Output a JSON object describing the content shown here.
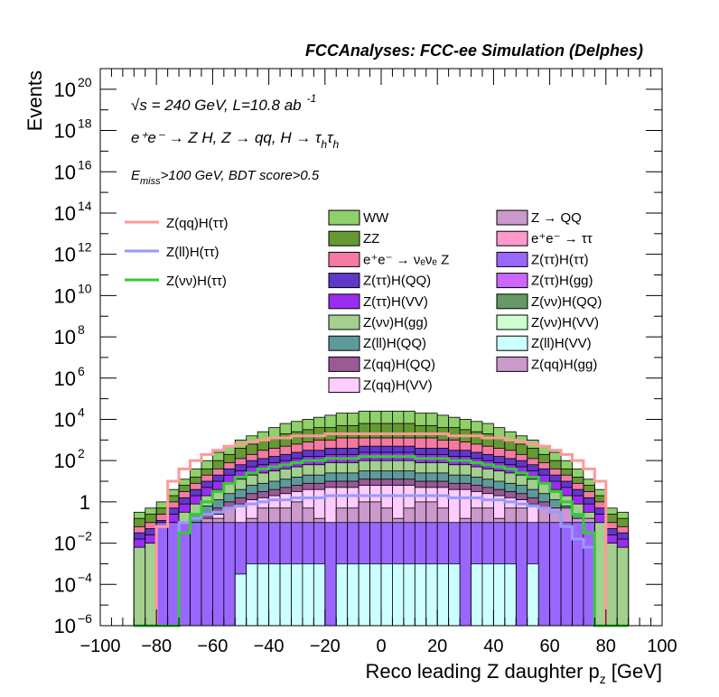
{
  "chart_data": {
    "type": "stacked-histogram",
    "title": "FCCAnalyses: FCC-ee Simulation (Delphes)",
    "xlabel": "Reco leading Z daughter p",
    "xlabel_sub": "z",
    "xlabel_unit": "[GeV]",
    "ylabel": "Events",
    "xlim": [
      -100,
      100
    ],
    "ylim_log10": [
      -6,
      21
    ],
    "y_scale": "log",
    "x_ticks": [
      "−100",
      "−80",
      "−60",
      "−40",
      "−20",
      "0",
      "20",
      "40",
      "60",
      "80",
      "100"
    ],
    "y_ticks": [
      {
        "exp": -6,
        "base": "10",
        "sup": "−6"
      },
      {
        "exp": -4,
        "base": "10",
        "sup": "−4"
      },
      {
        "exp": -2,
        "base": "10",
        "sup": "−2"
      },
      {
        "exp": 0,
        "base": "1",
        "sup": ""
      },
      {
        "exp": 2,
        "base": "10",
        "sup": "2"
      },
      {
        "exp": 4,
        "base": "10",
        "sup": "4"
      },
      {
        "exp": 6,
        "base": "10",
        "sup": "6"
      },
      {
        "exp": 8,
        "base": "10",
        "sup": "8"
      },
      {
        "exp": 10,
        "base": "10",
        "sup": "10"
      },
      {
        "exp": 12,
        "base": "10",
        "sup": "12"
      },
      {
        "exp": 14,
        "base": "10",
        "sup": "14"
      },
      {
        "exp": 16,
        "base": "10",
        "sup": "16"
      },
      {
        "exp": 18,
        "base": "10",
        "sup": "18"
      },
      {
        "exp": 20,
        "base": "10",
        "sup": "20"
      }
    ],
    "annotations": {
      "sqrt": "√s",
      "energy": " = 240 GeV, L=10.8 ab",
      "lumi_sup": "-1",
      "process": "e⁺e⁻ → Z H, Z → qq, H → τ",
      "process_sub_h1": "h",
      "process_tau2": "τ",
      "process_sub_h2": "h",
      "emiss": "E",
      "emiss_sub": "miss",
      "cuts": ">100 GeV, BDT score>0.5"
    },
    "bin_edges": [
      -88,
      -84,
      -80,
      -76,
      -72,
      -68,
      -64,
      -60,
      -56,
      -52,
      -48,
      -44,
      -40,
      -36,
      -32,
      -28,
      -24,
      -20,
      -16,
      -12,
      -8,
      -4,
      0,
      4,
      8,
      12,
      16,
      20,
      24,
      28,
      32,
      36,
      40,
      44,
      48,
      52,
      56,
      60,
      64,
      68,
      72,
      76,
      80,
      84,
      88
    ],
    "stack_log10": [
      {
        "name": "WW",
        "color": "#8fd06a",
        "values": [
          -0.5,
          -0.3,
          0.0,
          0.6,
          1.1,
          1.6,
          2.0,
          2.4,
          2.7,
          3.0,
          3.2,
          3.4,
          3.6,
          3.8,
          3.9,
          4.0,
          4.1,
          4.2,
          4.3,
          4.3,
          4.4,
          4.4,
          4.4,
          4.4,
          4.4,
          4.3,
          4.3,
          4.2,
          4.1,
          4.0,
          3.9,
          3.8,
          3.6,
          3.4,
          3.2,
          3.0,
          2.7,
          2.4,
          2.0,
          1.6,
          1.1,
          0.6,
          -0.3,
          -0.5
        ]
      },
      {
        "name": "ZZ",
        "color": "#669933",
        "values": [
          -0.8,
          -0.6,
          -0.3,
          0.3,
          0.8,
          1.2,
          1.6,
          2.0,
          2.3,
          2.6,
          2.8,
          3.0,
          3.1,
          3.3,
          3.4,
          3.5,
          3.6,
          3.6,
          3.7,
          3.7,
          3.8,
          3.8,
          3.8,
          3.8,
          3.8,
          3.7,
          3.7,
          3.6,
          3.6,
          3.5,
          3.4,
          3.3,
          3.1,
          3.0,
          2.8,
          2.6,
          2.3,
          2.0,
          1.6,
          1.2,
          0.8,
          0.3,
          -0.6,
          -0.8
        ]
      },
      {
        "name": "e⁺e⁻ → νₑνₑ Z",
        "color": "#f57aa2",
        "values": [
          -1.2,
          -1.0,
          -0.6,
          0.0,
          0.5,
          0.9,
          1.3,
          1.6,
          1.9,
          2.1,
          2.3,
          2.5,
          2.6,
          2.7,
          2.8,
          2.9,
          3.0,
          3.0,
          3.1,
          3.1,
          3.1,
          3.1,
          3.1,
          3.1,
          3.1,
          3.1,
          3.1,
          3.0,
          3.0,
          2.9,
          2.8,
          2.7,
          2.6,
          2.5,
          2.3,
          2.1,
          1.9,
          1.6,
          1.3,
          0.9,
          0.5,
          0.0,
          -1.0,
          -1.2
        ]
      },
      {
        "name": "Z(ττ)H(QQ)",
        "color": "#6038c8",
        "values": [
          -1.5,
          -1.3,
          -0.9,
          -0.3,
          0.2,
          0.6,
          1.0,
          1.3,
          1.6,
          1.8,
          2.0,
          2.1,
          2.2,
          2.3,
          2.4,
          2.5,
          2.5,
          2.6,
          2.6,
          2.6,
          2.7,
          2.7,
          2.7,
          2.7,
          2.7,
          2.6,
          2.6,
          2.6,
          2.5,
          2.5,
          2.4,
          2.3,
          2.2,
          2.1,
          2.0,
          1.8,
          1.6,
          1.3,
          1.0,
          0.6,
          0.2,
          -0.3,
          -1.3,
          -1.5
        ]
      },
      {
        "name": "Z(ττ)H(VV)",
        "color": "#9a2ef0",
        "values": [
          -1.8,
          -1.6,
          -1.2,
          -0.6,
          -0.1,
          0.3,
          0.7,
          1.0,
          1.3,
          1.5,
          1.7,
          1.8,
          1.9,
          2.0,
          2.1,
          2.2,
          2.2,
          2.3,
          2.3,
          2.3,
          2.4,
          2.4,
          2.4,
          2.4,
          2.4,
          2.3,
          2.3,
          2.3,
          2.2,
          2.2,
          2.1,
          2.0,
          1.9,
          1.8,
          1.7,
          1.5,
          1.3,
          1.0,
          0.7,
          0.3,
          -0.1,
          -0.6,
          -1.6,
          -1.8
        ]
      },
      {
        "name": "Z(νν)H(gg)",
        "color": "#a3cf8f",
        "values": [
          -2.2,
          -2.0,
          -1.6,
          -1.0,
          -0.5,
          -0.1,
          0.3,
          0.6,
          0.9,
          1.1,
          1.3,
          1.4,
          1.5,
          1.6,
          1.7,
          1.8,
          1.8,
          1.9,
          1.9,
          1.9,
          2.0,
          2.0,
          2.0,
          2.0,
          2.0,
          1.9,
          1.9,
          1.9,
          1.8,
          1.8,
          1.7,
          1.6,
          1.5,
          1.4,
          1.3,
          1.1,
          0.9,
          0.6,
          0.3,
          -0.1,
          -0.5,
          -1.0,
          -2.0,
          -2.2
        ]
      },
      {
        "name": "Z(ll)H(QQ)",
        "color": "#5f9a9a",
        "values": [
          -6,
          -6,
          -6,
          -6,
          -1.0,
          -0.6,
          -0.2,
          0.1,
          0.4,
          0.6,
          0.8,
          0.9,
          1.0,
          1.1,
          1.2,
          1.3,
          1.3,
          1.4,
          1.4,
          1.4,
          1.5,
          1.5,
          1.5,
          1.5,
          1.5,
          1.4,
          1.4,
          1.4,
          1.3,
          1.3,
          1.2,
          1.1,
          1.0,
          0.9,
          0.8,
          0.6,
          0.4,
          0.1,
          -0.2,
          -0.6,
          -1.0,
          -6,
          -6,
          -6
        ]
      },
      {
        "name": "Z(qq)H(QQ)",
        "color": "#9a5a96",
        "values": [
          -6,
          -6,
          -6,
          -6,
          -1.4,
          -1.0,
          -0.6,
          -0.3,
          0.0,
          0.2,
          0.4,
          0.5,
          0.6,
          0.7,
          0.8,
          0.9,
          0.9,
          1.0,
          1.0,
          1.0,
          1.1,
          1.1,
          1.1,
          1.1,
          1.1,
          1.0,
          1.0,
          1.0,
          0.9,
          0.9,
          0.8,
          0.7,
          0.6,
          0.5,
          0.4,
          0.2,
          0.0,
          -0.3,
          -0.6,
          -1.0,
          -1.4,
          -6,
          -6,
          -6
        ]
      },
      {
        "name": "Z(qq)H(VV)",
        "color": "#ffccff",
        "values": [
          -6,
          -6,
          -6,
          -6,
          -1.7,
          -1.3,
          -0.9,
          -0.6,
          -0.3,
          -0.1,
          0.1,
          0.2,
          0.3,
          0.4,
          0.5,
          0.6,
          0.6,
          0.7,
          0.7,
          0.7,
          0.8,
          0.8,
          0.8,
          0.8,
          0.8,
          0.7,
          0.7,
          0.7,
          0.6,
          0.6,
          0.5,
          0.4,
          0.3,
          0.2,
          0.1,
          -0.1,
          -0.3,
          -0.6,
          -0.9,
          -1.3,
          -1.7,
          -6,
          -6,
          -6
        ]
      },
      {
        "name": "Z → QQ",
        "color": "#cc99cc",
        "values": [
          -6,
          -6,
          -1.5,
          -1.5,
          -1.0,
          -1.5,
          -0.8,
          -0.8,
          -0.3,
          -1.5,
          -0.8,
          -0.3,
          -0.3,
          -0.3,
          0.0,
          -0.3,
          -0.8,
          -1.5,
          -0.3,
          -0.3,
          0.0,
          0.0,
          -0.3,
          -0.8,
          -0.3,
          0.0,
          0.0,
          -0.3,
          -1.5,
          -0.8,
          -0.3,
          -0.3,
          -0.8,
          -0.3,
          -0.3,
          -1.5,
          -0.3,
          -0.3,
          -0.3,
          -0.8,
          -0.8,
          -6,
          -6,
          -6
        ]
      },
      {
        "name": "e⁺e⁻ → ττ",
        "color": "#ff99cc",
        "values": [
          -6,
          -6,
          -6,
          -6,
          -6,
          -6,
          -6,
          -6,
          -6,
          -6,
          -6,
          -6,
          -6,
          -6,
          -6,
          -6,
          -6,
          -6,
          -6,
          -6,
          -6,
          -6,
          -6,
          -6,
          -6,
          -6,
          -6,
          -6,
          -6,
          -6,
          -6,
          -6,
          -6,
          -6,
          -6,
          -6,
          -6,
          -6,
          -6,
          -6,
          -6,
          -6,
          -6,
          -6
        ]
      },
      {
        "name": "Z(ττ)H(ττ)",
        "color": "#9966ff",
        "values": [
          -6,
          -6,
          -1.0,
          -1.0,
          -1.0,
          -1.0,
          -1.0,
          -1.0,
          -1.0,
          -1.0,
          -1.0,
          -1.0,
          -1.0,
          -1.0,
          -1.0,
          -1.0,
          -1.0,
          -1.0,
          -1.0,
          -1.0,
          -1.0,
          -1.0,
          -1.0,
          -1.0,
          -1.0,
          -1.0,
          -1.0,
          -1.0,
          -1.0,
          -1.0,
          -1.0,
          -1.0,
          -1.0,
          -1.0,
          -1.0,
          -1.0,
          -1.0,
          -1.0,
          -1.0,
          -1.0,
          -1.0,
          -6,
          -6,
          -6
        ]
      },
      {
        "name": "Z(ττ)H(gg)",
        "color": "#cc66ff",
        "values": [
          -6,
          -6,
          -6,
          -6,
          -6,
          -6,
          -6,
          -6,
          -6,
          -6,
          -6,
          -6,
          -6,
          -6,
          -6,
          -6,
          -6,
          -6,
          -6,
          -6,
          -6,
          -6,
          -6,
          -6,
          -6,
          -6,
          -6,
          -6,
          -6,
          -6,
          -6,
          -6,
          -6,
          -6,
          -6,
          -6,
          -6,
          -6,
          -6,
          -6,
          -6,
          -6,
          -6,
          -6
        ]
      },
      {
        "name": "Z(νν)H(QQ)",
        "color": "#669966",
        "values": [
          -6,
          -6,
          -6,
          -6,
          -6,
          -6,
          -6,
          -6,
          -6,
          -6,
          -6,
          -6,
          -6,
          -6,
          -6,
          -6,
          -6,
          -6,
          -6,
          -6,
          -6,
          -6,
          -6,
          -6,
          -6,
          -6,
          -6,
          -6,
          -6,
          -6,
          -6,
          -6,
          -6,
          -6,
          -6,
          -6,
          -6,
          -6,
          -6,
          -6,
          -6,
          -6,
          -6,
          -6
        ]
      },
      {
        "name": "Z(νν)H(VV)",
        "color": "#ccffcc",
        "values": [
          -6,
          -6,
          -6,
          -6,
          -6,
          -6,
          -6,
          -6,
          -6,
          -6,
          -6,
          -6,
          -6,
          -6,
          -6,
          -6,
          -6,
          -6,
          -6,
          -6,
          -6,
          -6,
          -6,
          -6,
          -6,
          -6,
          -6,
          -6,
          -6,
          -6,
          -6,
          -6,
          -6,
          -6,
          -6,
          -6,
          -6,
          -6,
          -6,
          -6,
          -6,
          -6,
          -6,
          -6
        ]
      },
      {
        "name": "Z(ll)H(VV)",
        "color": "#ccffff",
        "values": [
          -6,
          -6,
          -6,
          -6,
          -6,
          -6,
          -6,
          -6,
          -6,
          -3.5,
          -3.0,
          -3.0,
          -3.0,
          -3.0,
          -3.0,
          -3.0,
          -3.0,
          -6,
          -3.0,
          -3.0,
          -3.0,
          -3.0,
          -3.0,
          -3.0,
          -3.0,
          -3.0,
          -3.0,
          -3.0,
          -3.0,
          -6,
          -3.0,
          -3.0,
          -3.0,
          -3.0,
          -6,
          -3.0,
          -6,
          -6,
          -6,
          -6,
          -6,
          -6,
          -6,
          -6
        ]
      },
      {
        "name": "Z(qq)H(gg)",
        "color": "#cc99cc",
        "values": [
          -6,
          -6,
          -6,
          -6,
          -6,
          -6,
          -6,
          -6,
          -6,
          -6,
          -6,
          -6,
          -6,
          -6,
          -6,
          -6,
          -6,
          -6,
          -6,
          -6,
          -6,
          -6,
          -6,
          -6,
          -6,
          -6,
          -6,
          -6,
          -6,
          -6,
          -6,
          -6,
          -6,
          -6,
          -6,
          -6,
          -6,
          -6,
          -6,
          -6,
          -6,
          -6,
          -6,
          -6
        ]
      }
    ],
    "signals": [
      {
        "name": "Z(qq)H(ττ)",
        "color": "#ff9999",
        "values": [
          -6,
          -6,
          -1.2,
          1.0,
          1.6,
          2.0,
          2.3,
          2.5,
          2.7,
          2.8,
          2.9,
          3.0,
          3.1,
          3.1,
          3.2,
          3.2,
          3.2,
          3.3,
          3.3,
          3.3,
          3.3,
          3.3,
          3.3,
          3.3,
          3.3,
          3.3,
          3.3,
          3.3,
          3.2,
          3.2,
          3.2,
          3.1,
          3.1,
          3.0,
          2.9,
          2.8,
          2.7,
          2.5,
          2.3,
          2.0,
          1.6,
          1.0,
          -6,
          -6
        ]
      },
      {
        "name": "Z(ll)H(ττ)",
        "color": "#9999ff",
        "values": [
          -6,
          -6,
          -6,
          -6,
          -1.0,
          -0.8,
          -0.6,
          -0.5,
          -0.3,
          -0.2,
          -0.1,
          0.0,
          0.1,
          0.1,
          0.2,
          0.2,
          0.2,
          0.3,
          0.3,
          0.3,
          0.3,
          0.3,
          0.3,
          0.3,
          0.3,
          0.3,
          0.3,
          0.3,
          0.2,
          0.2,
          0.2,
          0.1,
          0.1,
          0.0,
          -0.1,
          -0.2,
          -0.3,
          -0.5,
          -1.2,
          -1.8,
          -2.2,
          -6,
          -6,
          -6
        ]
      },
      {
        "name": "Z(νν)H(ττ)",
        "color": "#33cc33",
        "values": [
          -6,
          -6,
          -6,
          -6,
          -1.5,
          -0.6,
          0.0,
          0.5,
          0.9,
          1.2,
          1.4,
          1.6,
          1.7,
          1.8,
          1.9,
          2.0,
          2.0,
          2.1,
          2.1,
          2.1,
          2.2,
          2.2,
          2.2,
          2.2,
          2.2,
          2.1,
          2.1,
          2.1,
          2.0,
          2.0,
          1.9,
          1.8,
          1.7,
          1.6,
          1.4,
          1.2,
          0.9,
          0.5,
          0.0,
          -0.6,
          -1.5,
          -6,
          -6,
          -6
        ]
      }
    ]
  }
}
